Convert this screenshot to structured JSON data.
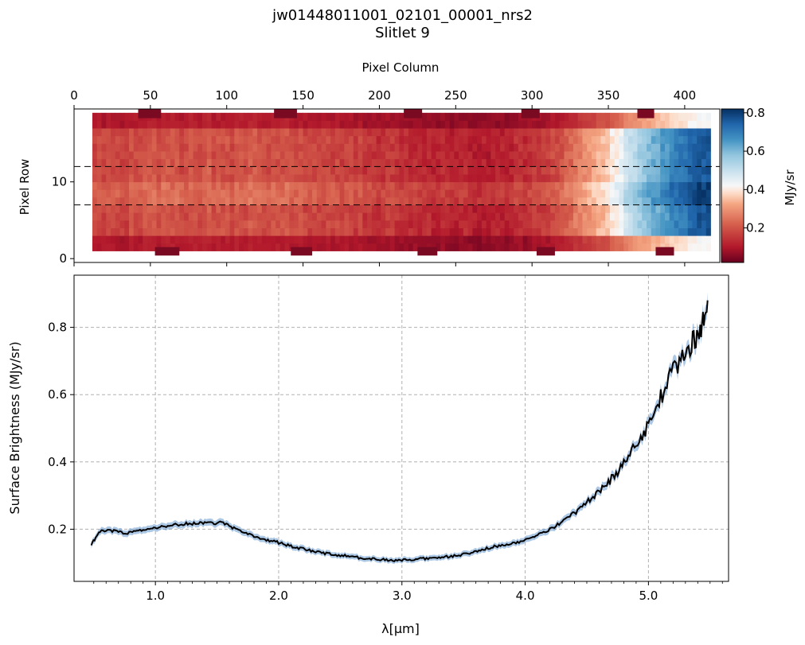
{
  "figure": {
    "title": "jw01448011001_02101_00001_nrs2",
    "subtitle": "Slitlet 9"
  },
  "chart_data": [
    {
      "type": "heatmap",
      "xlabel": "Pixel Column",
      "ylabel": "Pixel Row",
      "x_ticks": [
        "0",
        "50",
        "100",
        "150",
        "200",
        "250",
        "300",
        "350",
        "400"
      ],
      "x_tick_values": [
        0,
        50,
        100,
        150,
        200,
        250,
        300,
        350,
        400
      ],
      "y_ticks": [
        "0",
        "10"
      ],
      "y_tick_values": [
        0,
        10
      ],
      "xlim": [
        0,
        423
      ],
      "ylim": [
        -0.5,
        19.5
      ],
      "colormap": "RdBu",
      "colorbar_label": "MJy/sr",
      "colorbar_ticks": [
        "0.2",
        "0.4",
        "0.6",
        "0.8"
      ],
      "colorbar_tick_values": [
        0.2,
        0.4,
        0.6,
        0.8
      ],
      "colorbar_range": [
        0.02,
        0.82
      ],
      "extraction_rows": [
        7,
        12
      ],
      "data_columns": [
        12,
        417
      ],
      "data_rows": [
        1.5,
        18.5
      ],
      "column_brightness": {
        "x": [
          12,
          50,
          100,
          150,
          200,
          230,
          250,
          270,
          290,
          305,
          320,
          335,
          350,
          365,
          380,
          395,
          405,
          417
        ],
        "y": [
          0.16,
          0.19,
          0.2,
          0.19,
          0.15,
          0.12,
          0.11,
          0.12,
          0.13,
          0.15,
          0.22,
          0.28,
          0.38,
          0.52,
          0.62,
          0.7,
          0.75,
          0.78
        ]
      }
    },
    {
      "type": "line",
      "xlabel": "λ[μm]",
      "ylabel": "Surface Brightness (MJy/sr)",
      "x_ticks": [
        "1.0",
        "2.0",
        "3.0",
        "4.0",
        "5.0"
      ],
      "x_tick_values": [
        1.0,
        2.0,
        3.0,
        4.0,
        5.0
      ],
      "y_ticks": [
        "0.2",
        "0.4",
        "0.6",
        "0.8"
      ],
      "y_tick_values": [
        0.2,
        0.4,
        0.6,
        0.8
      ],
      "xlim": [
        0.34,
        5.65
      ],
      "ylim": [
        0.045,
        0.955
      ],
      "grid": true,
      "series": [
        {
          "name": "Surface Brightness",
          "color": "#000000",
          "error_color": "#4a86c5",
          "x": [
            0.48,
            0.55,
            0.65,
            0.75,
            0.85,
            0.95,
            1.05,
            1.15,
            1.25,
            1.35,
            1.45,
            1.55,
            1.65,
            1.75,
            1.85,
            1.95,
            2.05,
            2.15,
            2.25,
            2.35,
            2.45,
            2.55,
            2.65,
            2.75,
            2.85,
            2.95,
            3.05,
            3.15,
            3.25,
            3.35,
            3.45,
            3.55,
            3.65,
            3.75,
            3.85,
            3.95,
            4.05,
            4.15,
            4.25,
            4.35,
            4.45,
            4.55,
            4.65,
            4.75,
            4.85,
            4.95,
            5.05,
            5.15,
            5.25,
            5.35,
            5.42,
            5.48
          ],
          "y": [
            0.155,
            0.195,
            0.195,
            0.188,
            0.195,
            0.2,
            0.208,
            0.212,
            0.216,
            0.218,
            0.22,
            0.218,
            0.2,
            0.185,
            0.172,
            0.165,
            0.155,
            0.145,
            0.138,
            0.13,
            0.125,
            0.12,
            0.115,
            0.112,
            0.11,
            0.108,
            0.11,
            0.112,
            0.115,
            0.118,
            0.122,
            0.13,
            0.14,
            0.148,
            0.155,
            0.162,
            0.175,
            0.19,
            0.21,
            0.235,
            0.262,
            0.295,
            0.33,
            0.37,
            0.42,
            0.48,
            0.55,
            0.63,
            0.7,
            0.75,
            0.8,
            0.88
          ]
        }
      ]
    }
  ]
}
